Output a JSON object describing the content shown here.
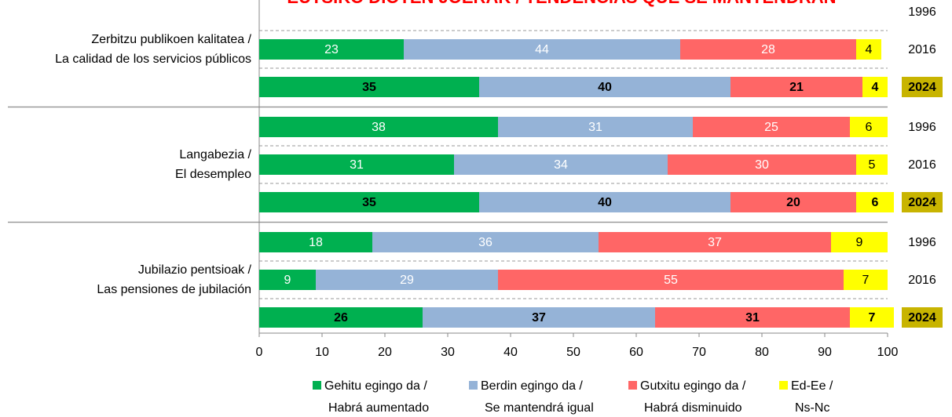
{
  "chart_data": {
    "type": "bar",
    "orientation": "horizontal",
    "stacked": true,
    "title": "EUTSIKO DIOTEN JOERAK / TENDENCIAS QUE SE MANTENDRÁN",
    "groups": [
      {
        "label": [
          "Zerbitzu publikoen kalitatea /",
          "La calidad de los servicios públicos"
        ],
        "categories": [
          "1996",
          "2016",
          "2024"
        ]
      },
      {
        "label": [
          "Langabezia /",
          "El desempleo"
        ],
        "categories": [
          "1996",
          "2016",
          "2024"
        ]
      },
      {
        "label": [
          "Jubilazio pentsioak /",
          "Las pensiones de jubilación"
        ],
        "categories": [
          "1996",
          "2016",
          "2024"
        ]
      }
    ],
    "series": [
      {
        "name": [
          "Gehitu egingo da /",
          "Habrá aumentado"
        ],
        "color": "#00b050",
        "values": [
          null,
          23,
          35,
          38,
          31,
          35,
          18,
          9,
          26
        ]
      },
      {
        "name": [
          "Berdin egingo da /",
          "Se mantendrá igual"
        ],
        "color": "#95b3d7",
        "values": [
          null,
          44,
          40,
          31,
          34,
          40,
          36,
          29,
          37
        ]
      },
      {
        "name": [
          "Gutxitu egingo da /",
          "Habrá disminuido"
        ],
        "color": "#ff6666",
        "values": [
          null,
          28,
          21,
          25,
          30,
          20,
          37,
          55,
          31
        ]
      },
      {
        "name": [
          "Ed-Ee /",
          "Ns-Nc"
        ],
        "color": "#ffff00",
        "values": [
          null,
          4,
          4,
          6,
          5,
          6,
          9,
          7,
          7
        ]
      }
    ],
    "xlim": [
      0,
      100
    ],
    "xticks": [
      0,
      10,
      20,
      30,
      40,
      50,
      60,
      70,
      80,
      90,
      100
    ],
    "title_color": "#ff0000",
    "highlight_color": "#c8b400",
    "legend": "bottom"
  }
}
